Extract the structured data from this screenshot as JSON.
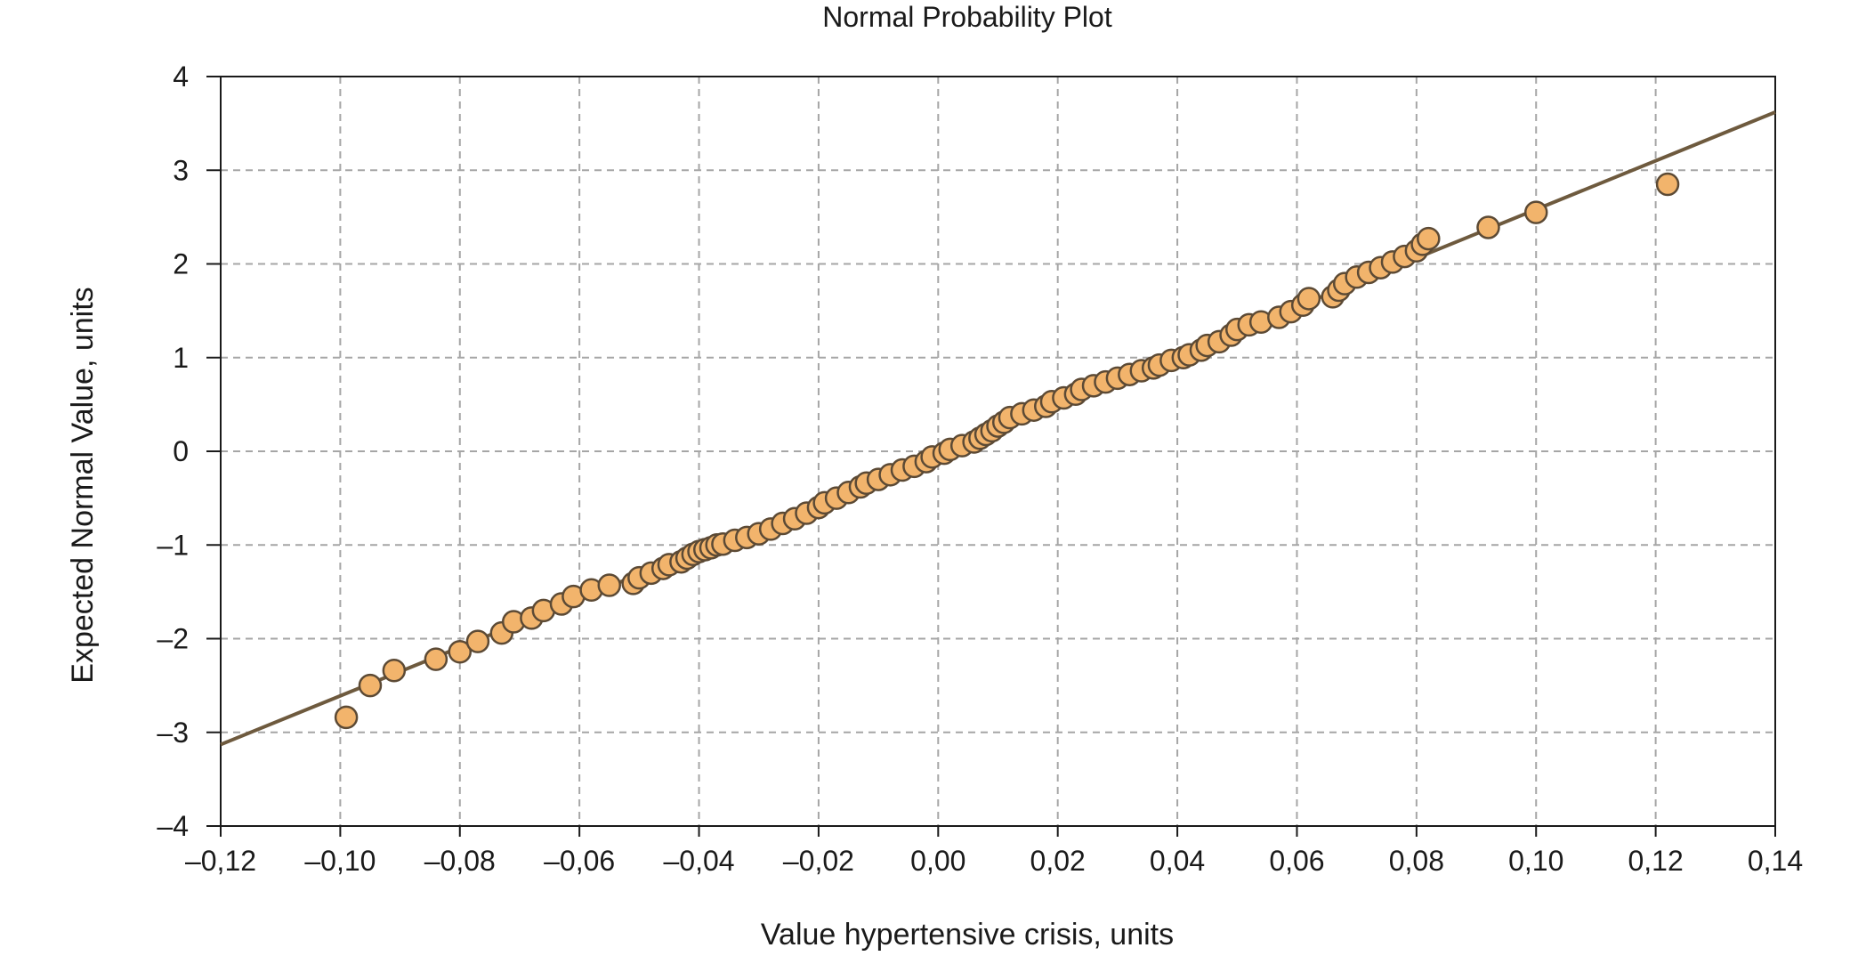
{
  "chart_data": {
    "type": "scatter",
    "title": "Normal Probability Plot",
    "xlabel": "Value hypertensive crisis, units",
    "ylabel": "Expected Normal Value, units",
    "xlim": [
      -0.12,
      0.14
    ],
    "ylim": [
      -4,
      4
    ],
    "xticks": [
      -0.12,
      -0.1,
      -0.08,
      -0.06,
      -0.04,
      -0.02,
      0.0,
      0.02,
      0.04,
      0.06,
      0.08,
      0.1,
      0.12,
      0.14
    ],
    "xtick_labels": [
      "–0,12",
      "–0,10",
      "–0,08",
      "–0,06",
      "–0,04",
      "–0,02",
      "0,00",
      "0,02",
      "0,04",
      "0,06",
      "0,08",
      "0,10",
      "0,12",
      "0,14"
    ],
    "yticks": [
      4,
      3,
      2,
      1,
      0,
      -1,
      -2,
      -3,
      -4
    ],
    "ytick_labels": [
      "4",
      "3",
      "2",
      "1",
      "0",
      "–1",
      "–2",
      "–3",
      "–4"
    ],
    "grid": true,
    "colors": {
      "point_fill": "#F2B46C",
      "point_stroke": "#5C4A35",
      "line": "#6E5A3E",
      "grid": "#A6A6A6",
      "axis": "#1a1a1a"
    },
    "fit_line": {
      "x": [
        -0.12,
        0.14
      ],
      "y": [
        -3.13,
        3.62
      ]
    },
    "series": [
      {
        "points": [
          [
            -0.099,
            -2.84
          ],
          [
            -0.095,
            -2.5
          ],
          [
            -0.091,
            -2.34
          ],
          [
            -0.084,
            -2.22
          ],
          [
            -0.08,
            -2.14
          ],
          [
            -0.077,
            -2.03
          ],
          [
            -0.073,
            -1.94
          ],
          [
            -0.071,
            -1.82
          ],
          [
            -0.068,
            -1.78
          ],
          [
            -0.066,
            -1.7
          ],
          [
            -0.063,
            -1.63
          ],
          [
            -0.061,
            -1.55
          ],
          [
            -0.058,
            -1.48
          ],
          [
            -0.055,
            -1.43
          ],
          [
            -0.051,
            -1.41
          ],
          [
            -0.05,
            -1.35
          ],
          [
            -0.048,
            -1.3
          ],
          [
            -0.046,
            -1.25
          ],
          [
            -0.045,
            -1.21
          ],
          [
            -0.043,
            -1.18
          ],
          [
            -0.042,
            -1.14
          ],
          [
            -0.041,
            -1.1
          ],
          [
            -0.04,
            -1.07
          ],
          [
            -0.039,
            -1.05
          ],
          [
            -0.038,
            -1.03
          ],
          [
            -0.037,
            -1.0
          ],
          [
            -0.036,
            -0.99
          ],
          [
            -0.034,
            -0.95
          ],
          [
            -0.032,
            -0.92
          ],
          [
            -0.03,
            -0.88
          ],
          [
            -0.028,
            -0.83
          ],
          [
            -0.026,
            -0.77
          ],
          [
            -0.024,
            -0.72
          ],
          [
            -0.022,
            -0.66
          ],
          [
            -0.02,
            -0.6
          ],
          [
            -0.019,
            -0.55
          ],
          [
            -0.017,
            -0.5
          ],
          [
            -0.015,
            -0.44
          ],
          [
            -0.013,
            -0.38
          ],
          [
            -0.012,
            -0.34
          ],
          [
            -0.01,
            -0.3
          ],
          [
            -0.008,
            -0.25
          ],
          [
            -0.006,
            -0.2
          ],
          [
            -0.004,
            -0.16
          ],
          [
            -0.002,
            -0.11
          ],
          [
            -0.001,
            -0.06
          ],
          [
            0.001,
            -0.02
          ],
          [
            0.002,
            0.02
          ],
          [
            0.004,
            0.06
          ],
          [
            0.006,
            0.1
          ],
          [
            0.007,
            0.14
          ],
          [
            0.008,
            0.18
          ],
          [
            0.009,
            0.22
          ],
          [
            0.01,
            0.27
          ],
          [
            0.011,
            0.31
          ],
          [
            0.012,
            0.36
          ],
          [
            0.014,
            0.4
          ],
          [
            0.016,
            0.44
          ],
          [
            0.018,
            0.48
          ],
          [
            0.019,
            0.53
          ],
          [
            0.021,
            0.57
          ],
          [
            0.023,
            0.61
          ],
          [
            0.024,
            0.66
          ],
          [
            0.026,
            0.7
          ],
          [
            0.028,
            0.74
          ],
          [
            0.03,
            0.78
          ],
          [
            0.032,
            0.82
          ],
          [
            0.034,
            0.86
          ],
          [
            0.036,
            0.89
          ],
          [
            0.037,
            0.92
          ],
          [
            0.039,
            0.97
          ],
          [
            0.041,
            1.0
          ],
          [
            0.042,
            1.03
          ],
          [
            0.044,
            1.08
          ],
          [
            0.045,
            1.13
          ],
          [
            0.047,
            1.17
          ],
          [
            0.049,
            1.24
          ],
          [
            0.05,
            1.3
          ],
          [
            0.052,
            1.35
          ],
          [
            0.054,
            1.38
          ],
          [
            0.057,
            1.43
          ],
          [
            0.059,
            1.49
          ],
          [
            0.061,
            1.56
          ],
          [
            0.062,
            1.63
          ],
          [
            0.066,
            1.65
          ],
          [
            0.067,
            1.72
          ],
          [
            0.068,
            1.79
          ],
          [
            0.07,
            1.86
          ],
          [
            0.072,
            1.91
          ],
          [
            0.074,
            1.96
          ],
          [
            0.076,
            2.02
          ],
          [
            0.078,
            2.08
          ],
          [
            0.08,
            2.14
          ],
          [
            0.081,
            2.21
          ],
          [
            0.082,
            2.27
          ],
          [
            0.092,
            2.39
          ],
          [
            0.1,
            2.55
          ],
          [
            0.122,
            2.85
          ]
        ]
      }
    ]
  }
}
